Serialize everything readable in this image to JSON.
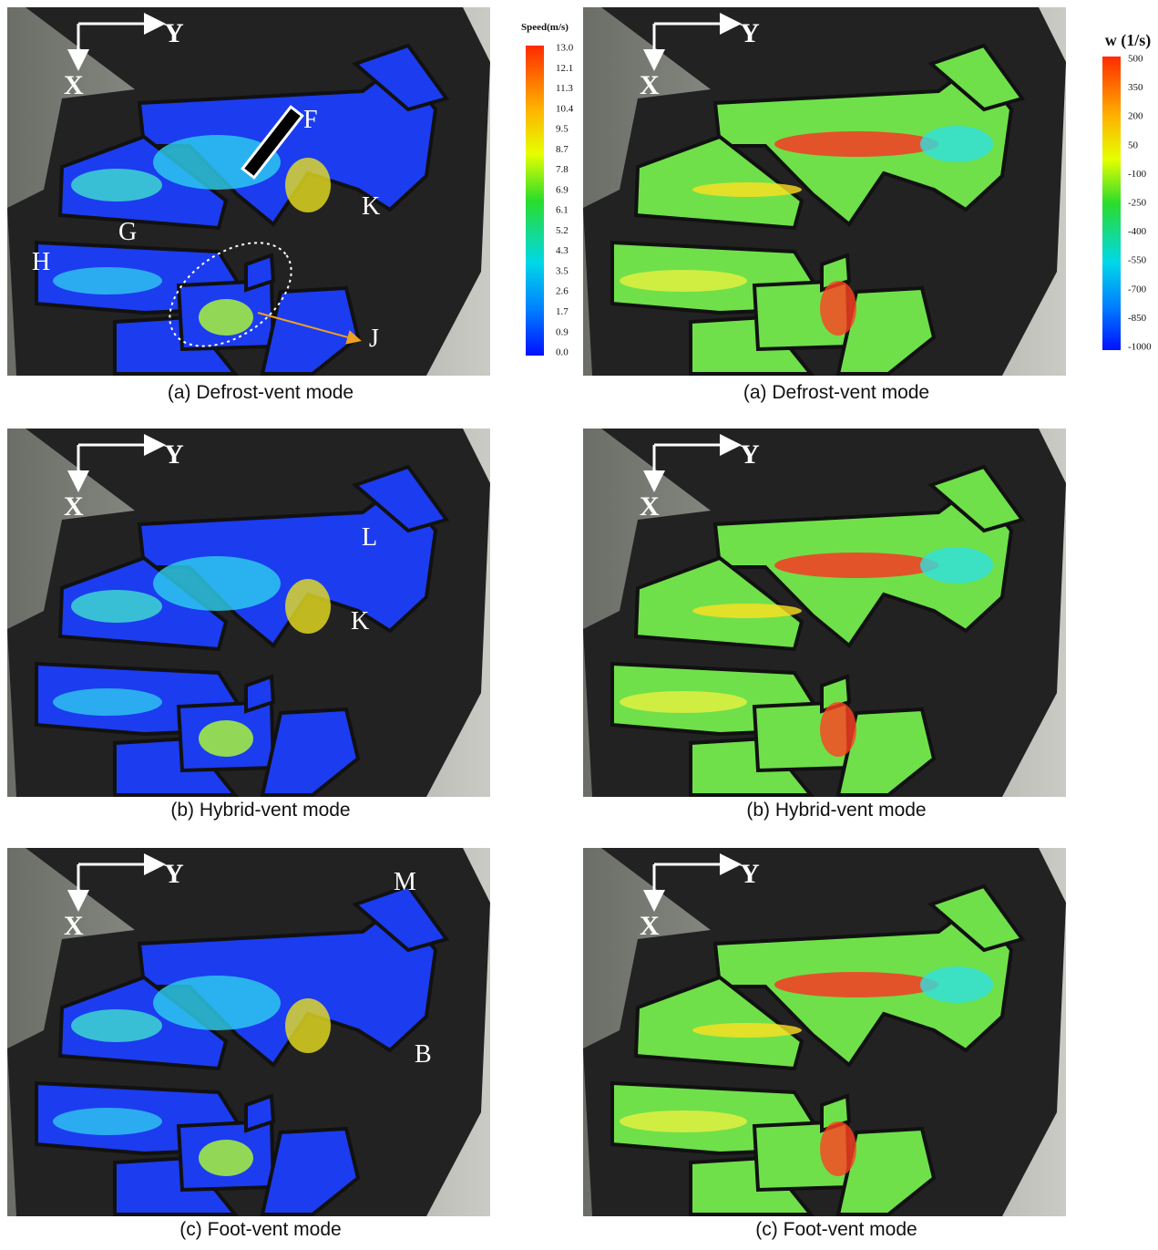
{
  "panels": [
    {
      "kind": "speed",
      "caption": "(a) Defrost-vent mode",
      "axis_x": "X",
      "axis_y": "Y",
      "labels": [
        "F",
        "G",
        "H",
        "J",
        "K"
      ]
    },
    {
      "kind": "vorticity",
      "caption": "(a) Defrost-vent mode",
      "axis_x": "X",
      "axis_y": "Y",
      "labels": []
    },
    {
      "kind": "speed",
      "caption": "(b) Hybrid-vent mode",
      "axis_x": "X",
      "axis_y": "Y",
      "labels": [
        "L",
        "K"
      ]
    },
    {
      "kind": "vorticity",
      "caption": "(b) Hybrid-vent mode",
      "axis_x": "X",
      "axis_y": "Y",
      "labels": []
    },
    {
      "kind": "speed",
      "caption": "(c) Foot-vent mode",
      "axis_x": "X",
      "axis_y": "Y",
      "labels": [
        "M",
        "B"
      ]
    },
    {
      "kind": "vorticity",
      "caption": "(c) Foot-vent mode",
      "axis_x": "X",
      "axis_y": "Y",
      "labels": []
    }
  ],
  "colorbars": [
    {
      "title": "Speed(m/s)",
      "ticks": [
        "13.0",
        "12.1",
        "11.3",
        "10.4",
        "9.5",
        "8.7",
        "7.8",
        "6.9",
        "6.1",
        "5.2",
        "4.3",
        "3.5",
        "2.6",
        "1.7",
        "0.9",
        "0.0"
      ]
    },
    {
      "title": "w (1/s)",
      "ticks": [
        "500",
        "350",
        "200",
        "50",
        "-100",
        "-250",
        "-400",
        "-550",
        "-700",
        "-850",
        "-1000"
      ]
    }
  ]
}
